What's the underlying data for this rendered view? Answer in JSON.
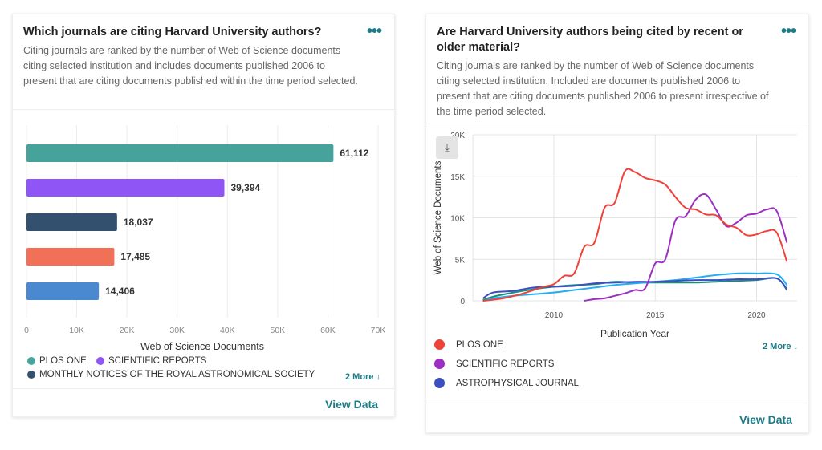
{
  "cards": [
    {
      "title": "Which journals are citing Harvard University authors?",
      "description": "Citing journals are ranked by the number of Web of Science documents citing selected institution and includes documents published 2006 to present that are citing documents published within the time period selected.",
      "more_label": "2 More ↓",
      "view_data": "View Data",
      "menu_icon": "more-horizontal-icon"
    },
    {
      "title": "Are Harvard University authors being cited by recent or older material?",
      "description": "Citing journals are ranked by the number of Web of Science documents citing selected institution. Included are documents published 2006 to present that are citing documents published 2006 to present irrespective of the time period selected.",
      "more_label": "2 More ↓",
      "view_data": "View Data",
      "menu_icon": "more-horizontal-icon",
      "download_icon": "download-icon"
    }
  ],
  "chart_data": [
    {
      "type": "bar",
      "orientation": "horizontal",
      "categories": [
        "PLOS ONE",
        "SCIENTIFIC REPORTS",
        "MONTHLY NOTICES OF THE ROYAL ASTRONOMICAL SOCIETY",
        "",
        ""
      ],
      "values": [
        61112,
        39394,
        18037,
        17485,
        14406
      ],
      "value_labels": [
        "61,112",
        "39,394",
        "18,037",
        "17,485",
        "14,406"
      ],
      "colors": [
        "#45a39c",
        "#8f55f5",
        "#33506e",
        "#f07058",
        "#4a89d0"
      ],
      "xlabel": "Web of Science Documents",
      "xlim": [
        0,
        70000
      ],
      "xticks": [
        "0",
        "10K",
        "20K",
        "30K",
        "40K",
        "50K",
        "60K",
        "70K"
      ],
      "grid": true,
      "legend": "bottom"
    },
    {
      "type": "line",
      "xlabel": "Publication Year",
      "ylabel": "Web of Science Documents",
      "xlim": [
        2006,
        2022
      ],
      "ylim": [
        0,
        20000
      ],
      "xticks": [
        {
          "v": 2010,
          "l": "2010"
        },
        {
          "v": 2015,
          "l": "2015"
        },
        {
          "v": 2020,
          "l": "2020"
        }
      ],
      "yticks": [
        {
          "v": 0,
          "l": "0"
        },
        {
          "v": 5000,
          "l": "5K"
        },
        {
          "v": 10000,
          "l": "10K"
        },
        {
          "v": 15000,
          "l": "15K"
        },
        {
          "v": 20000,
          "l": "20K"
        }
      ],
      "grid": true,
      "legend": "bottom",
      "series": [
        {
          "name": "PLOS ONE",
          "color": "#f0413a",
          "x": [
            2006.5,
            2007.5,
            2008.5,
            2009.5,
            2010,
            2010.5,
            2011,
            2011.5,
            2012,
            2012.5,
            2013,
            2013.5,
            2014,
            2014.5,
            2015,
            2015.5,
            2016,
            2016.5,
            2017,
            2017.5,
            2018,
            2018.5,
            2019,
            2019.5,
            2020,
            2020.5,
            2021,
            2021.5
          ],
          "y": [
            0,
            300,
            900,
            1700,
            2000,
            3000,
            3300,
            6500,
            7000,
            11200,
            11800,
            15600,
            15500,
            14800,
            14500,
            14000,
            12500,
            11200,
            11000,
            10400,
            10300,
            9200,
            8800,
            7900,
            8000,
            8400,
            8200,
            4700
          ]
        },
        {
          "name": "SCIENTIFIC REPORTS",
          "color": "#9b2fc0",
          "x": [
            2011.5,
            2012,
            2012.5,
            2013,
            2013.5,
            2014,
            2014.5,
            2015,
            2015.5,
            2016,
            2016.5,
            2017,
            2017.5,
            2018,
            2018.5,
            2019,
            2019.5,
            2020,
            2020.5,
            2021,
            2021.5
          ],
          "y": [
            0,
            200,
            300,
            600,
            900,
            1300,
            1500,
            4500,
            5000,
            9700,
            10200,
            12200,
            12800,
            11000,
            9000,
            9400,
            10300,
            10500,
            11000,
            10800,
            7000
          ]
        },
        {
          "name": "ASTROPHYSICAL JOURNAL",
          "color": "#3b4fc0",
          "x": [
            2006.5,
            2007,
            2008,
            2009,
            2010,
            2011,
            2012,
            2013,
            2014,
            2015,
            2016,
            2017,
            2018,
            2019,
            2020,
            2021,
            2021.5
          ],
          "y": [
            300,
            1000,
            1200,
            1600,
            1700,
            1800,
            2100,
            2200,
            2300,
            2300,
            2400,
            2500,
            2500,
            2600,
            2600,
            2700,
            1400
          ]
        },
        {
          "name": "",
          "color": "#22aef0",
          "x": [
            2006.5,
            2007,
            2008,
            2009,
            2010,
            2011,
            2012,
            2013,
            2014,
            2015,
            2016,
            2017,
            2018,
            2019,
            2020,
            2021,
            2021.5
          ],
          "y": [
            0,
            300,
            600,
            800,
            1000,
            1300,
            1600,
            1900,
            2100,
            2300,
            2500,
            2800,
            3100,
            3300,
            3300,
            3200,
            1900
          ]
        },
        {
          "name": "",
          "color": "#1e8c7a",
          "x": [
            2006.5,
            2007,
            2008,
            2009,
            2010,
            2011,
            2012,
            2013,
            2014,
            2015,
            2016,
            2017,
            2018,
            2019,
            2020,
            2021,
            2021.5
          ],
          "y": [
            100,
            500,
            1000,
            1400,
            1700,
            1900,
            2000,
            2300,
            2200,
            2200,
            2200,
            2200,
            2300,
            2400,
            2500,
            2700,
            1300
          ]
        }
      ]
    }
  ]
}
